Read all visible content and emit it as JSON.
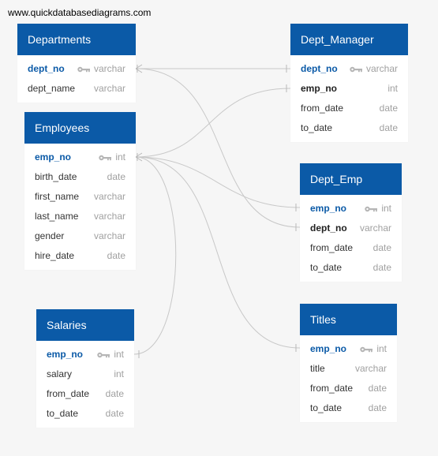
{
  "watermark": "www.quickdatabasediagrams.com",
  "colors": {
    "header": "#0b5aa7",
    "primary_key_text": "#0b5aa7",
    "relationship_line": "#c8c8c8"
  },
  "icons": {
    "primary_key": "key-icon"
  },
  "tables": {
    "departments": {
      "title": "Departments",
      "fields": [
        {
          "name": "dept_no",
          "type": "varchar",
          "key": "pk"
        },
        {
          "name": "dept_name",
          "type": "varchar",
          "key": ""
        }
      ]
    },
    "employees": {
      "title": "Employees",
      "fields": [
        {
          "name": "emp_no",
          "type": "int",
          "key": "pk"
        },
        {
          "name": "birth_date",
          "type": "date",
          "key": ""
        },
        {
          "name": "first_name",
          "type": "varchar",
          "key": ""
        },
        {
          "name": "last_name",
          "type": "varchar",
          "key": ""
        },
        {
          "name": "gender",
          "type": "varchar",
          "key": ""
        },
        {
          "name": "hire_date",
          "type": "date",
          "key": ""
        }
      ]
    },
    "salaries": {
      "title": "Salaries",
      "fields": [
        {
          "name": "emp_no",
          "type": "int",
          "key": "pk"
        },
        {
          "name": "salary",
          "type": "int",
          "key": ""
        },
        {
          "name": "from_date",
          "type": "date",
          "key": ""
        },
        {
          "name": "to_date",
          "type": "date",
          "key": ""
        }
      ]
    },
    "dept_manager": {
      "title": "Dept_Manager",
      "fields": [
        {
          "name": "dept_no",
          "type": "varchar",
          "key": "pk"
        },
        {
          "name": "emp_no",
          "type": "int",
          "key": "fk"
        },
        {
          "name": "from_date",
          "type": "date",
          "key": ""
        },
        {
          "name": "to_date",
          "type": "date",
          "key": ""
        }
      ]
    },
    "dept_emp": {
      "title": "Dept_Emp",
      "fields": [
        {
          "name": "emp_no",
          "type": "int",
          "key": "pk"
        },
        {
          "name": "dept_no",
          "type": "varchar",
          "key": "fk"
        },
        {
          "name": "from_date",
          "type": "date",
          "key": ""
        },
        {
          "name": "to_date",
          "type": "date",
          "key": ""
        }
      ]
    },
    "titles": {
      "title": "Titles",
      "fields": [
        {
          "name": "emp_no",
          "type": "int",
          "key": "pk"
        },
        {
          "name": "title",
          "type": "varchar",
          "key": ""
        },
        {
          "name": "from_date",
          "type": "date",
          "key": ""
        },
        {
          "name": "to_date",
          "type": "date",
          "key": ""
        }
      ]
    }
  },
  "relationships": [
    {
      "from": "departments.dept_no",
      "to": "dept_manager.dept_no"
    },
    {
      "from": "departments.dept_no",
      "to": "dept_emp.dept_no"
    },
    {
      "from": "employees.emp_no",
      "to": "dept_manager.emp_no"
    },
    {
      "from": "employees.emp_no",
      "to": "dept_emp.emp_no"
    },
    {
      "from": "employees.emp_no",
      "to": "titles.emp_no"
    },
    {
      "from": "employees.emp_no",
      "to": "salaries.emp_no"
    }
  ]
}
